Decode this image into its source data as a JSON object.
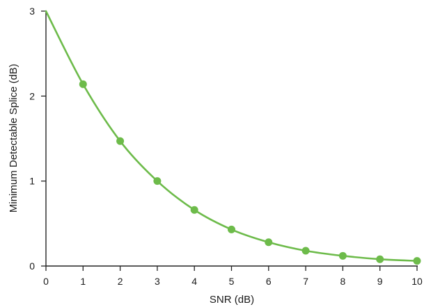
{
  "chart_data": {
    "type": "line",
    "title": "",
    "xlabel": "SNR (dB)",
    "ylabel": "Minimum Detectable Splice (dB)",
    "xlim": [
      0,
      10
    ],
    "ylim": [
      0,
      3
    ],
    "grid": false,
    "x_ticks": [
      "0",
      "1",
      "2",
      "3",
      "4",
      "5",
      "6",
      "7",
      "8",
      "9",
      "10"
    ],
    "y_ticks": [
      "0",
      "1",
      "2",
      "3"
    ],
    "series": [
      {
        "color": "#6dbb4a",
        "marker": "circle",
        "x": [
          1,
          2,
          3,
          4,
          5,
          6,
          7,
          8,
          9,
          10
        ],
        "y": [
          2.14,
          1.47,
          1.0,
          0.66,
          0.43,
          0.28,
          0.18,
          0.12,
          0.08,
          0.06
        ],
        "curve_start": [
          0,
          3.0
        ]
      }
    ]
  }
}
